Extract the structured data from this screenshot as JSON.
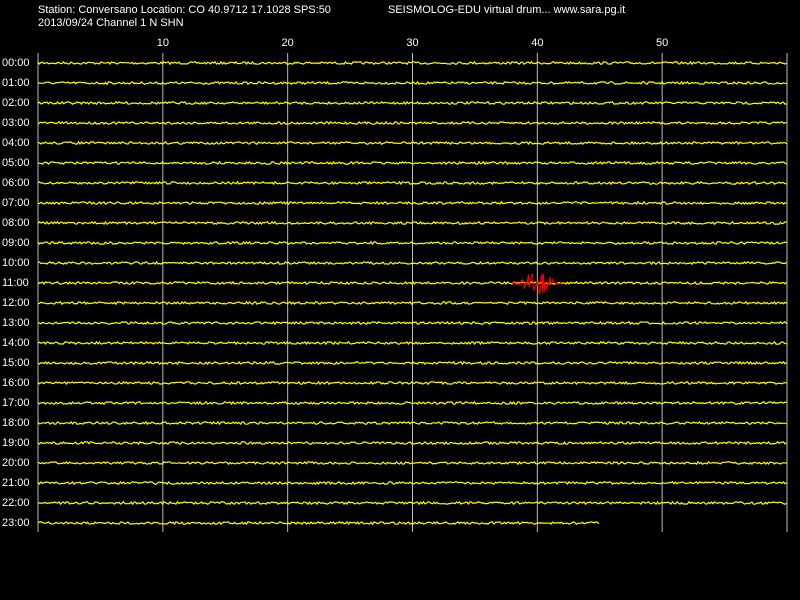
{
  "chart_data": {
    "type": "helicorder",
    "title": "Station: Conversano Location: CO 40.9712 17.1028 SPS:50",
    "source": "SEISMOLOG-EDU virtual drum... www.sara.pg.it",
    "subtitle": "2013/09/24  Channel 1 N SHN",
    "xlim": [
      0,
      60
    ],
    "xticks": [
      10,
      20,
      30,
      40,
      50
    ],
    "rows": [
      "00:00",
      "01:00",
      "02:00",
      "03:00",
      "04:00",
      "05:00",
      "06:00",
      "07:00",
      "08:00",
      "09:00",
      "10:00",
      "11:00",
      "12:00",
      "13:00",
      "14:00",
      "15:00",
      "16:00",
      "17:00",
      "18:00",
      "19:00",
      "20:00",
      "21:00",
      "22:00",
      "23:00"
    ],
    "trace_color": "#ffff00",
    "trace_end": 45,
    "events": [
      {
        "row": 11,
        "start": 38,
        "end": 42,
        "color": "#ff0000"
      }
    ]
  }
}
